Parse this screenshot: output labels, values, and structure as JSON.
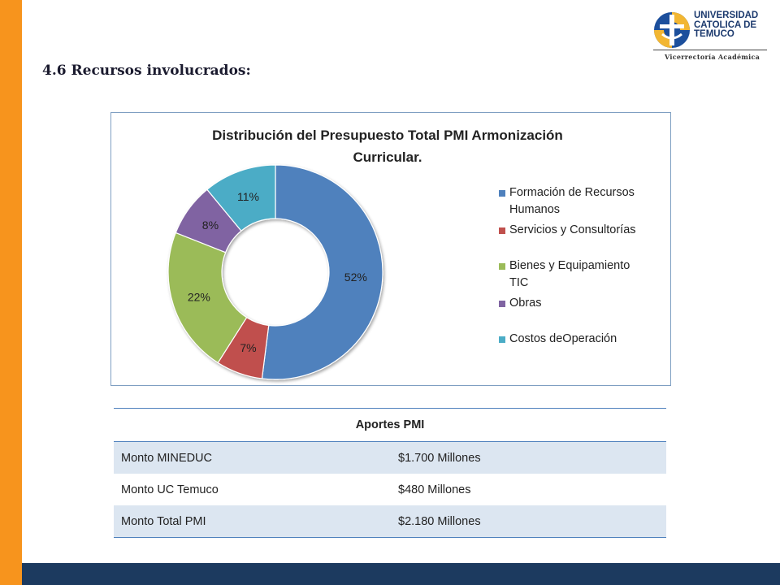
{
  "heading": "4.6 Recursos involucrados:",
  "logo": {
    "name_lines": [
      "UNIVERSIDAD",
      "CATOLICA DE",
      "TEMUCO"
    ],
    "subtitle": "Vicerrectoría Académica"
  },
  "chart_data": {
    "type": "pie",
    "variant": "donut",
    "title_lines": [
      "Distribución  del Presupuesto Total PMI Armonización",
      "Curricular."
    ],
    "slices": [
      {
        "label_lines": [
          "Formación de Recursos",
          "Humanos"
        ],
        "value": 52,
        "display": "52%",
        "color": "#4f81bd"
      },
      {
        "label_lines": [
          "Servicios y Consultorías"
        ],
        "value": 7,
        "display": "7%",
        "color": "#c0504d"
      },
      {
        "label_lines": [
          "Bienes y Equipamiento",
          "TIC"
        ],
        "value": 22,
        "display": "22%",
        "color": "#9bbb59"
      },
      {
        "label_lines": [
          "Obras"
        ],
        "value": 8,
        "display": "8%",
        "color": "#8064a2"
      },
      {
        "label_lines": [
          "Costos deOperación"
        ],
        "value": 11,
        "display": "11%",
        "color": "#4bacc6"
      }
    ],
    "legend_position": "right"
  },
  "table": {
    "header": "Aportes PMI",
    "rows": [
      {
        "label": "Monto MINEDUC",
        "value": "$1.700 Millones"
      },
      {
        "label": "Monto UC Temuco",
        "value": "$480 Millones"
      },
      {
        "label": "Monto Total PMI",
        "value": "$2.180 Millones"
      }
    ]
  },
  "colors": {
    "left_bar": "#f7941d",
    "bottom_bar": "#1c3a5f",
    "table_accent": "#4f81bd",
    "table_shade": "#dce6f1"
  }
}
